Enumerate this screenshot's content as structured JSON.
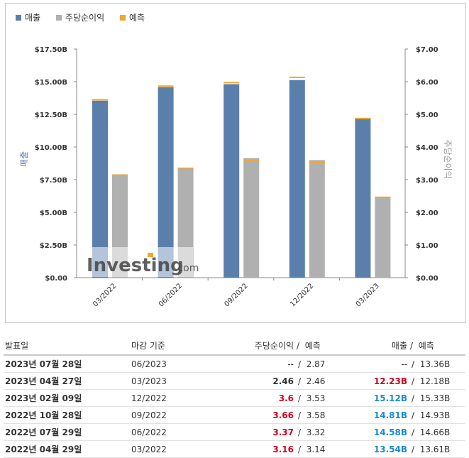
{
  "legend": {
    "revenue": "매출",
    "eps": "주당순이익",
    "forecast": "예측"
  },
  "colors": {
    "revenue": "#5a7fab",
    "eps": "#b0b0b0",
    "forecast": "#f0a830",
    "negative": "#d0021b",
    "positive": "#1a8ad4"
  },
  "chart_data": {
    "type": "bar",
    "categories": [
      "03/2022",
      "06/2022",
      "09/2022",
      "12/2022",
      "03/2023"
    ],
    "series": [
      {
        "name": "매출",
        "axis": "left",
        "values": [
          13.54,
          14.58,
          14.81,
          15.12,
          12.23
        ],
        "forecast": [
          13.61,
          14.66,
          14.93,
          15.33,
          12.18
        ]
      },
      {
        "name": "주당순이익",
        "axis": "right",
        "values": [
          3.16,
          3.37,
          3.66,
          3.6,
          2.46
        ],
        "forecast": [
          3.14,
          3.32,
          3.58,
          3.53,
          2.46
        ]
      }
    ],
    "ylabel": "매출",
    "y2label": "주당순이익",
    "ylim": [
      0,
      17.5
    ],
    "y2lim": [
      0,
      7
    ],
    "yticks": [
      "$0.00",
      "$2.50B",
      "$5.00B",
      "$7.50B",
      "$10.00B",
      "$12.50B",
      "$15.00B",
      "$17.50B"
    ],
    "y2ticks": [
      "$0.00",
      "$1.00",
      "$2.00",
      "$3.00",
      "$4.00",
      "$5.00",
      "$6.00",
      "$7.00"
    ],
    "legend_position": "top-left",
    "grid": false
  },
  "watermark": {
    "brand": "Investing",
    "suffix": ".com"
  },
  "table": {
    "headers": {
      "date": "발표일",
      "period": "마감 기준",
      "eps": "주당순이익",
      "eps_forecast": "예측",
      "revenue": "매출",
      "revenue_forecast": "예측",
      "slash": "/"
    },
    "rows": [
      {
        "date": "2023년 07월 28일",
        "period": "06/2023",
        "eps": "--",
        "eps_style": "none",
        "eps_forecast": "2.87",
        "revenue": "--",
        "revenue_style": "none",
        "revenue_forecast": "13.36B"
      },
      {
        "date": "2023년 04월 27일",
        "period": "03/2023",
        "eps": "2.46",
        "eps_style": "bold",
        "eps_forecast": "2.46",
        "revenue": "12.23B",
        "revenue_style": "neg",
        "revenue_forecast": "12.18B"
      },
      {
        "date": "2023년 02월 09일",
        "period": "12/2022",
        "eps": "3.6",
        "eps_style": "neg",
        "eps_forecast": "3.53",
        "revenue": "15.12B",
        "revenue_style": "pos",
        "revenue_forecast": "15.33B"
      },
      {
        "date": "2022년 10월 28일",
        "period": "09/2022",
        "eps": "3.66",
        "eps_style": "neg",
        "eps_forecast": "3.58",
        "revenue": "14.81B",
        "revenue_style": "pos",
        "revenue_forecast": "14.93B"
      },
      {
        "date": "2022년 07월 29일",
        "period": "06/2022",
        "eps": "3.37",
        "eps_style": "neg",
        "eps_forecast": "3.32",
        "revenue": "14.58B",
        "revenue_style": "pos",
        "revenue_forecast": "14.66B"
      },
      {
        "date": "2022년 04월 29일",
        "period": "03/2022",
        "eps": "3.16",
        "eps_style": "neg",
        "eps_forecast": "3.14",
        "revenue": "13.54B",
        "revenue_style": "pos",
        "revenue_forecast": "13.61B"
      }
    ]
  }
}
